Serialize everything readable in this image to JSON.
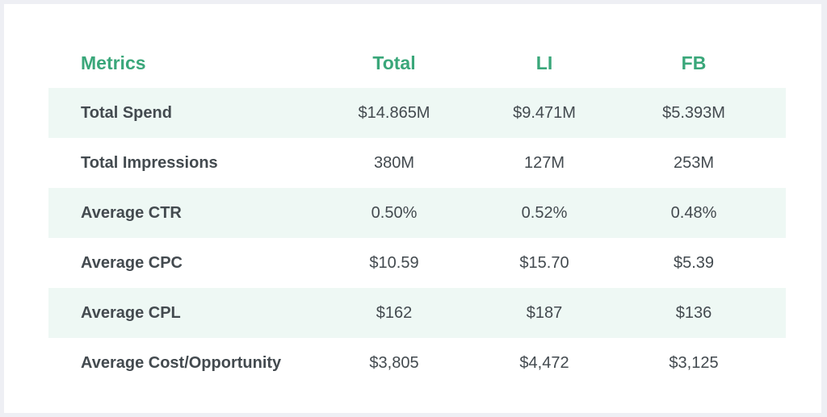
{
  "chart_data": {
    "type": "table",
    "columns": [
      "Metrics",
      "Total",
      "LI",
      "FB"
    ],
    "rows": [
      {
        "metric": "Total Spend",
        "total": "$14.865M",
        "li": "$9.471M",
        "fb": "$5.393M"
      },
      {
        "metric": "Total Impressions",
        "total": "380M",
        "li": "127M",
        "fb": "253M"
      },
      {
        "metric": "Average CTR",
        "total": "0.50%",
        "li": "0.52%",
        "fb": "0.48%"
      },
      {
        "metric": "Average CPC",
        "total": "$10.59",
        "li": "$15.70",
        "fb": "$5.39"
      },
      {
        "metric": "Average CPL",
        "total": "$162",
        "li": "$187",
        "fb": "$136"
      },
      {
        "metric": "Average Cost/Opportunity",
        "total": "$3,805",
        "li": "$4,472",
        "fb": "$3,125"
      }
    ]
  },
  "colors": {
    "header_text": "#3aa77a",
    "body_text": "#434a4f",
    "shaded_row": "#eef8f4",
    "card": "#ffffff",
    "page_background": "#eeff f4"
  }
}
